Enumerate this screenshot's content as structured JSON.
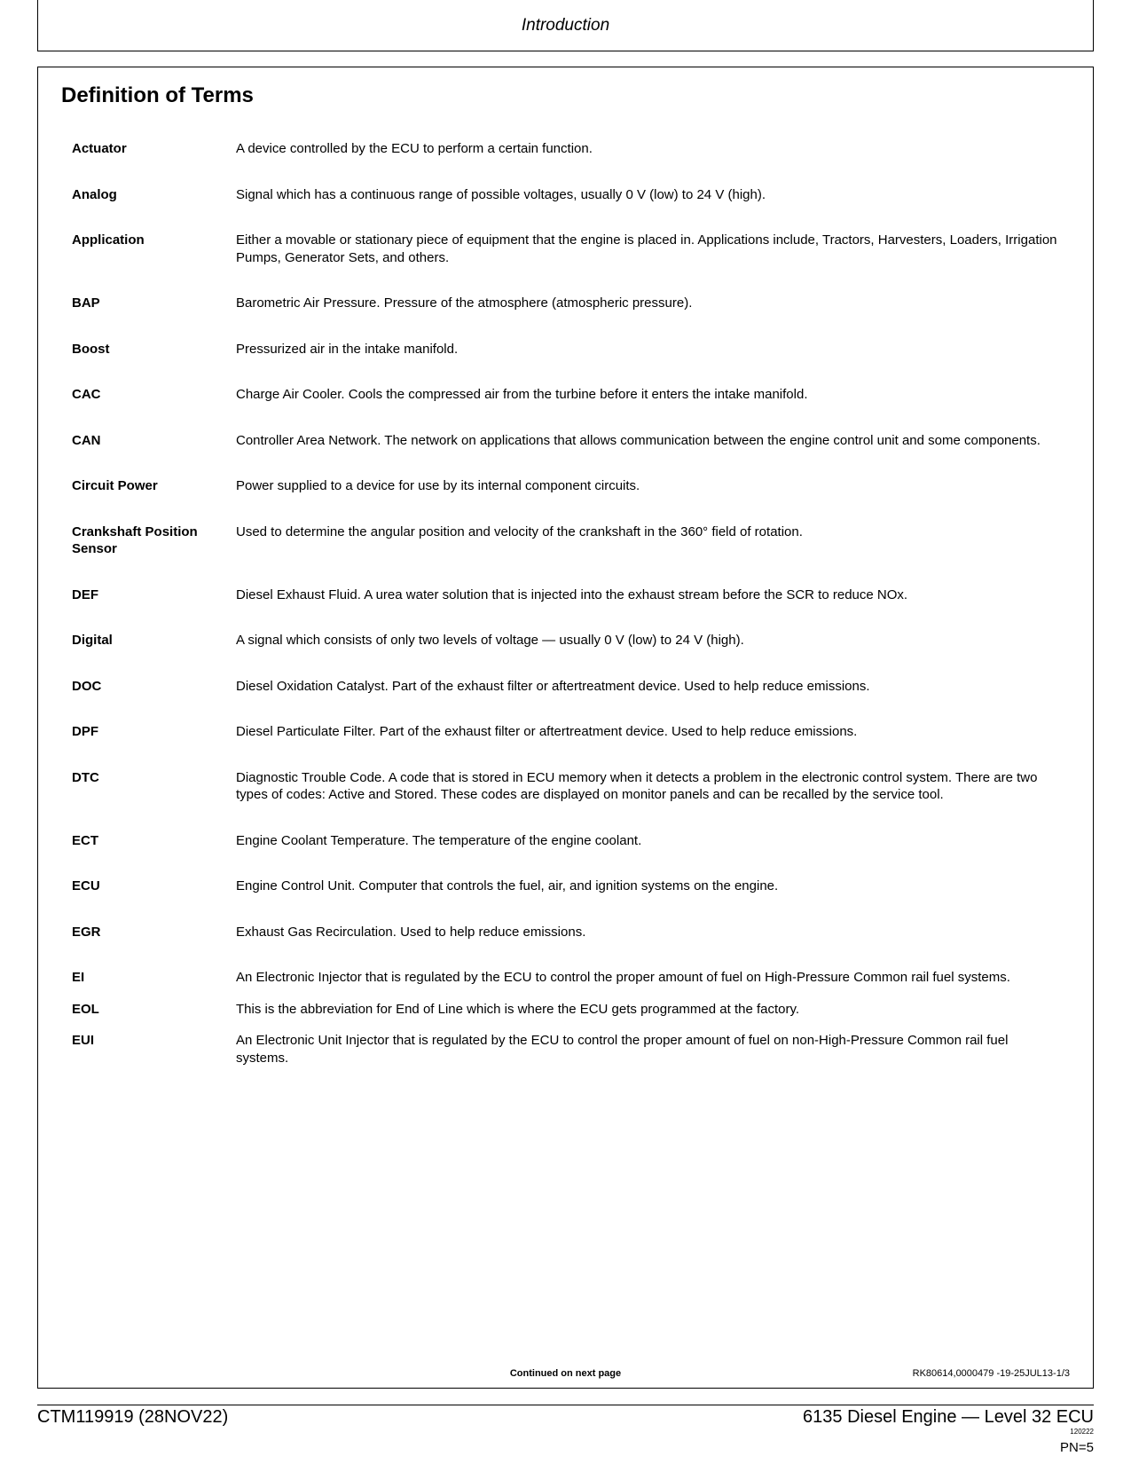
{
  "header": {
    "title": "Introduction"
  },
  "section": {
    "title": "Definition of Terms"
  },
  "definitions": [
    {
      "term": "Actuator",
      "desc": "A device controlled by the ECU to perform a certain function.",
      "spacing": "normal"
    },
    {
      "term": "Analog",
      "desc": "Signal which has a continuous range of possible voltages, usually 0 V (low) to 24 V (high).",
      "spacing": "normal"
    },
    {
      "term": "Application",
      "desc": "Either a movable or stationary piece of equipment that the engine is placed in.  Applications include, Tractors, Harvesters, Loaders, Irrigation Pumps, Generator Sets, and others.",
      "spacing": "normal"
    },
    {
      "term": "BAP",
      "desc": "Barometric Air Pressure.  Pressure of the atmosphere (atmospheric pressure).",
      "spacing": "normal"
    },
    {
      "term": "Boost",
      "desc": "Pressurized air in the intake manifold.",
      "spacing": "normal"
    },
    {
      "term": "CAC",
      "desc": "Charge Air Cooler.  Cools the compressed air from the turbine before it enters the intake manifold.",
      "spacing": "normal"
    },
    {
      "term": "CAN",
      "desc": "Controller Area Network.  The network on applications that allows communication between the engine control unit and some components.",
      "spacing": "normal"
    },
    {
      "term": "Circuit Power",
      "desc": "Power supplied to a device for use by its internal component circuits.",
      "spacing": "normal"
    },
    {
      "term": "Crankshaft Position Sensor",
      "desc": "Used to determine the angular position and velocity of the crankshaft in the 360° field of rotation.",
      "spacing": "normal"
    },
    {
      "term": "DEF",
      "desc": "Diesel Exhaust Fluid.  A urea water solution that is injected into the exhaust stream before the SCR to reduce NOx.",
      "spacing": "normal"
    },
    {
      "term": "Digital",
      "desc": "A signal which consists of only two levels of voltage — usually 0 V (low) to 24 V (high).",
      "spacing": "normal"
    },
    {
      "term": "DOC",
      "desc": "Diesel Oxidation Catalyst.  Part of the exhaust filter or aftertreatment device.  Used to help reduce emissions.",
      "spacing": "normal"
    },
    {
      "term": "DPF",
      "desc": "Diesel Particulate Filter.  Part of the exhaust filter or aftertreatment device.  Used to help reduce emissions.",
      "spacing": "normal"
    },
    {
      "term": "DTC",
      "desc": "Diagnostic Trouble Code.  A code that is stored in ECU memory when it detects a problem in the electronic control system.  There are two types of codes:  Active and Stored.  These codes are displayed on monitor panels and can be recalled by the service tool.",
      "spacing": "normal"
    },
    {
      "term": "ECT",
      "desc": "Engine Coolant Temperature.  The temperature of the engine coolant.",
      "spacing": "normal"
    },
    {
      "term": "ECU",
      "desc": "Engine Control Unit.  Computer that controls the fuel, air, and ignition systems on the engine.",
      "spacing": "normal"
    },
    {
      "term": "EGR",
      "desc": "Exhaust Gas Recirculation.  Used to help reduce emissions.",
      "spacing": "normal"
    },
    {
      "term": "EI",
      "desc": "An Electronic Injector that is regulated by the ECU to control the proper amount of fuel on High-Pressure Common rail fuel systems.",
      "spacing": "tight"
    },
    {
      "term": "EOL",
      "desc": "This is the abbreviation for End of Line which is where the ECU gets programmed at the factory.",
      "spacing": "tight"
    },
    {
      "term": "EUI",
      "desc": "An Electronic Unit Injector that is regulated by the ECU to control the proper amount of fuel on non-High-Pressure Common rail fuel systems.",
      "spacing": "normal"
    }
  ],
  "continued": {
    "label": "Continued on next page",
    "ref": "RK80614,0000479 -19-25JUL13-1/3"
  },
  "footer": {
    "left": "CTM119919 (28NOV22)",
    "right_main": "6135 Diesel Engine — Level 32 ECU",
    "right_small": "120222",
    "page_num": "PN=5"
  }
}
